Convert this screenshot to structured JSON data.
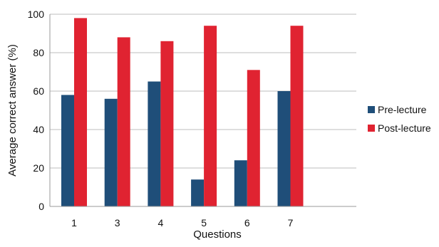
{
  "chart_data": {
    "type": "bar",
    "categories": [
      "1",
      "3",
      "4",
      "5",
      "6",
      "7"
    ],
    "series": [
      {
        "name": "Pre-lecture",
        "values": [
          58,
          56,
          65,
          14,
          24,
          60
        ],
        "color": "#1f4e79"
      },
      {
        "name": "Post-lecture",
        "values": [
          98,
          88,
          86,
          94,
          71,
          94
        ],
        "color": "#e02331"
      }
    ],
    "title": "",
    "xlabel": "Questions",
    "ylabel": "Average correct answer (%)",
    "ylim": [
      0,
      100
    ],
    "yticks": [
      0,
      20,
      40,
      60,
      80,
      100
    ],
    "grid": true,
    "legend_position": "right"
  }
}
